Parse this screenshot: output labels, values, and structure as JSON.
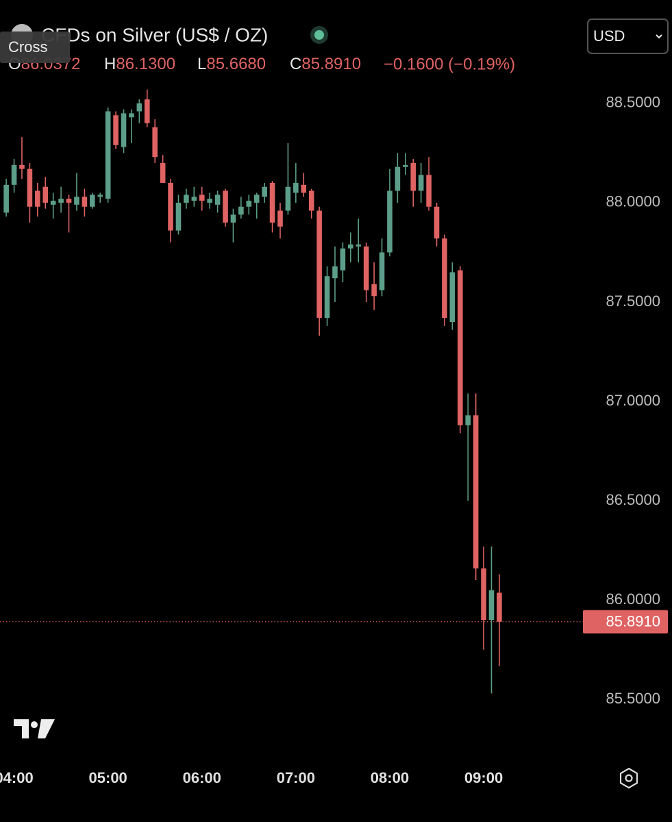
{
  "chart_data": {
    "type": "candlestick",
    "title": "CFDs on Silver (US$ / OZ)",
    "x": [
      "03:55",
      "04:00",
      "04:05",
      "04:10",
      "04:15",
      "04:20",
      "04:25",
      "04:30",
      "04:35",
      "04:40",
      "04:45",
      "04:50",
      "04:55",
      "05:00",
      "05:05",
      "05:10",
      "05:15",
      "05:20",
      "05:25",
      "05:30",
      "05:35",
      "05:40",
      "05:45",
      "05:50",
      "05:55",
      "06:00",
      "06:05",
      "06:10",
      "06:15",
      "06:20",
      "06:25",
      "06:30",
      "06:35",
      "06:40",
      "06:45",
      "06:50",
      "06:55",
      "07:00",
      "07:05",
      "07:10",
      "07:15",
      "07:20",
      "07:25",
      "07:30",
      "07:35",
      "07:40",
      "07:45",
      "07:50",
      "07:55",
      "08:00",
      "08:05",
      "08:10",
      "08:15",
      "08:20",
      "08:25",
      "08:30",
      "08:35",
      "08:40",
      "08:45",
      "08:50",
      "08:55",
      "09:00",
      "09:05",
      "09:10"
    ],
    "open": [
      87.95,
      88.09,
      88.19,
      88.17,
      88.06,
      88.08,
      87.99,
      88.0,
      88.02,
      87.99,
      88.03,
      87.98,
      88.03,
      88.02,
      88.44,
      88.28,
      88.43,
      88.46,
      88.52,
      88.38,
      88.2,
      88.1,
      87.86,
      88.0,
      88.01,
      88.04,
      88.0,
      87.99,
      88.06,
      87.9,
      87.94,
      87.98,
      88.0,
      88.03,
      88.1,
      87.96,
      87.96,
      88.05,
      88.09,
      88.06,
      87.96,
      87.42,
      87.62,
      87.66,
      87.77,
      87.78,
      87.78,
      87.59,
      87.56,
      87.75,
      88.06,
      88.18,
      88.2,
      88.06,
      88.14,
      87.98,
      87.82,
      87.4,
      87.66,
      86.88,
      86.93,
      86.16,
      85.9,
      86.0372
    ],
    "high": [
      88.12,
      88.22,
      88.33,
      88.2,
      88.1,
      88.13,
      88.05,
      88.08,
      88.04,
      88.15,
      88.07,
      88.05,
      88.05,
      88.48,
      88.46,
      88.47,
      88.47,
      88.52,
      88.57,
      88.42,
      88.24,
      88.12,
      88.04,
      88.07,
      88.08,
      88.08,
      88.05,
      88.06,
      88.07,
      87.97,
      88.03,
      88.04,
      88.05,
      88.1,
      88.11,
      88.0,
      88.3,
      88.2,
      88.15,
      88.07,
      87.98,
      87.68,
      87.78,
      87.8,
      87.85,
      87.92,
      87.8,
      87.7,
      87.82,
      88.17,
      88.25,
      88.25,
      88.22,
      88.2,
      88.23,
      88.0,
      87.84,
      87.7,
      87.68,
      87.04,
      87.04,
      86.27,
      86.27,
      86.13
    ],
    "low": [
      87.93,
      88.05,
      88.12,
      87.9,
      87.93,
      87.97,
      87.92,
      87.95,
      87.85,
      87.96,
      87.93,
      87.97,
      88.0,
      88.0,
      88.27,
      88.25,
      88.3,
      88.4,
      88.38,
      88.2,
      88.1,
      87.8,
      87.84,
      87.97,
      87.98,
      87.96,
      87.97,
      87.95,
      87.88,
      87.8,
      87.92,
      87.94,
      87.92,
      88.0,
      87.85,
      87.82,
      87.94,
      88.0,
      88.03,
      87.92,
      87.33,
      87.38,
      87.5,
      87.6,
      87.7,
      87.7,
      87.5,
      87.46,
      87.53,
      87.73,
      88.0,
      88.14,
      87.98,
      88.0,
      87.96,
      87.78,
      87.38,
      87.36,
      86.84,
      86.5,
      86.1,
      85.75,
      85.53,
      85.668
    ],
    "close": [
      88.09,
      88.19,
      88.17,
      87.98,
      87.98,
      88.0,
      88.01,
      88.02,
      88.0,
      88.03,
      87.98,
      88.04,
      88.04,
      88.46,
      88.29,
      88.45,
      88.45,
      88.5,
      88.4,
      88.23,
      88.1,
      87.86,
      88.0,
      88.04,
      88.03,
      88.01,
      88.02,
      88.04,
      87.9,
      87.94,
      87.98,
      88.01,
      88.04,
      88.08,
      87.9,
      87.88,
      88.08,
      88.1,
      88.05,
      87.96,
      87.42,
      87.63,
      87.68,
      87.77,
      87.79,
      87.79,
      87.56,
      87.53,
      87.75,
      88.06,
      88.18,
      88.19,
      88.06,
      88.14,
      87.98,
      87.82,
      87.42,
      87.65,
      86.88,
      86.93,
      86.16,
      85.9,
      86.05,
      85.891
    ],
    "up_color": "#5c9e89",
    "down_color": "#e06363",
    "xlim": [
      "03:51",
      "10:03"
    ],
    "xticks": [
      "04:00",
      "05:00",
      "06:00",
      "07:00",
      "08:00",
      "09:00"
    ],
    "ylim": [
      85.228,
      88.641
    ],
    "yticks": [
      {
        "value": 85.5,
        "label": "85.5000"
      },
      {
        "value": 86,
        "label": "86.0000"
      },
      {
        "value": 86.5,
        "label": "86.5000"
      },
      {
        "value": 87,
        "label": "87.0000"
      },
      {
        "value": 87.5,
        "label": "87.5000"
      },
      {
        "value": 88,
        "label": "88.0000"
      },
      {
        "value": 88.5,
        "label": "88.5000"
      }
    ],
    "last_price_label": "85.8910",
    "legend": [
      {
        "letter": "O",
        "value": "86.0372"
      },
      {
        "letter": "H",
        "value": "86.1300"
      },
      {
        "letter": "L",
        "value": "85.6680"
      },
      {
        "letter": "C",
        "value": "85.8910"
      }
    ],
    "change": "−0.1600 (−0.19%)"
  },
  "ui": {
    "cross": "Cross",
    "currency": "USD"
  }
}
